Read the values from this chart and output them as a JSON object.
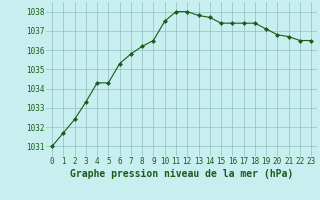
{
  "x": [
    0,
    1,
    2,
    3,
    4,
    5,
    6,
    7,
    8,
    9,
    10,
    11,
    12,
    13,
    14,
    15,
    16,
    17,
    18,
    19,
    20,
    21,
    22,
    23
  ],
  "y": [
    1031.0,
    1031.7,
    1032.4,
    1033.3,
    1034.3,
    1034.3,
    1035.3,
    1035.8,
    1036.2,
    1036.5,
    1037.5,
    1038.0,
    1038.0,
    1037.8,
    1037.7,
    1037.4,
    1037.4,
    1037.4,
    1037.4,
    1037.1,
    1036.8,
    1036.7,
    1036.5,
    1036.5
  ],
  "ylim": [
    1030.5,
    1038.5
  ],
  "yticks": [
    1031,
    1032,
    1033,
    1034,
    1035,
    1036,
    1037,
    1038
  ],
  "xticks": [
    0,
    1,
    2,
    3,
    4,
    5,
    6,
    7,
    8,
    9,
    10,
    11,
    12,
    13,
    14,
    15,
    16,
    17,
    18,
    19,
    20,
    21,
    22,
    23
  ],
  "xlabel": "Graphe pression niveau de la mer (hPa)",
  "line_color": "#1a5c1a",
  "marker": "D",
  "marker_size": 2.0,
  "background_color": "#c8eef0",
  "grid_color": "#8fbfbf",
  "tick_fontsize": 5.5,
  "xlabel_fontsize": 7.0
}
